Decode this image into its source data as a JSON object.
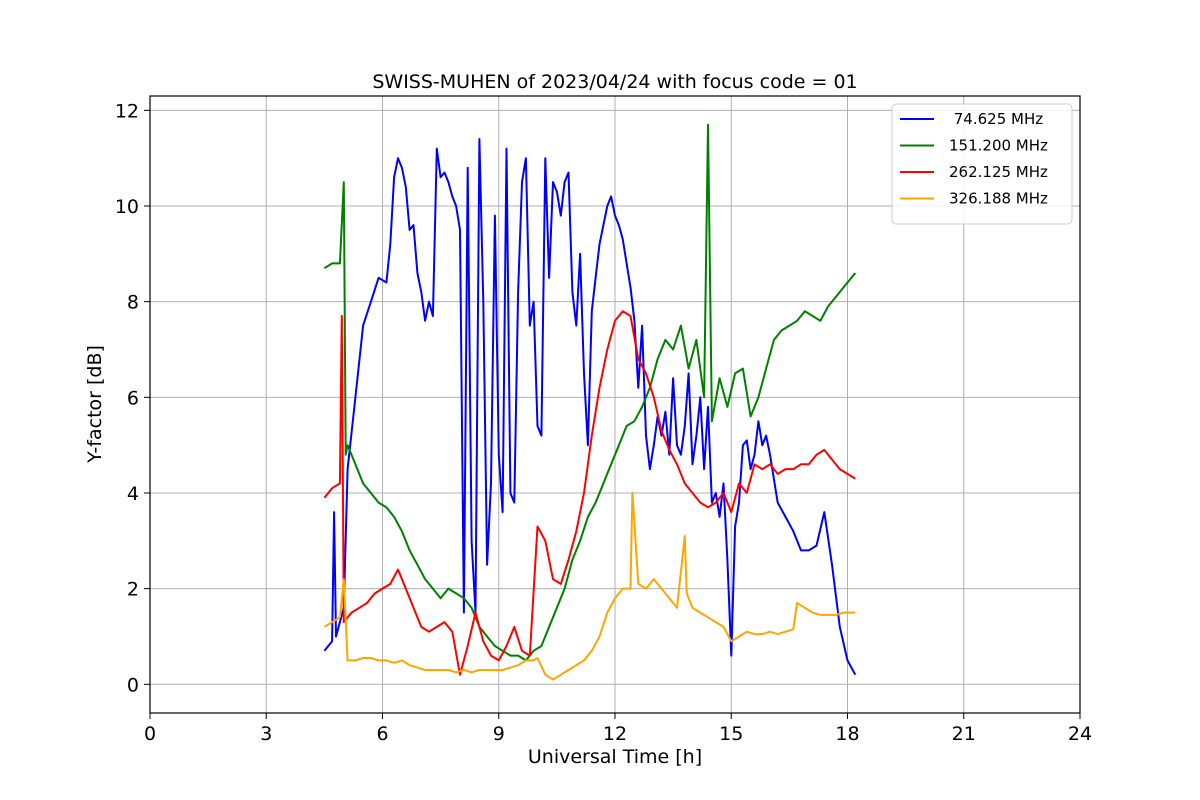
{
  "chart_data": {
    "type": "line",
    "title": "SWISS-MUHEN of 2023/04/24 with focus code = 01",
    "xlabel": "Universal Time [h]",
    "ylabel": "Y-factor [dB]",
    "xlim": [
      0,
      24
    ],
    "ylim": [
      -0.6,
      12.3
    ],
    "xticks": [
      0,
      3,
      6,
      9,
      12,
      15,
      18,
      21,
      24
    ],
    "yticks": [
      0,
      2,
      4,
      6,
      8,
      10,
      12
    ],
    "grid": true,
    "legend_position": "top-right",
    "series": [
      {
        "name": " 74.625 MHz",
        "color": "#0000ff",
        "x": [
          4.5,
          4.7,
          4.75,
          4.8,
          5.0,
          5.1,
          5.3,
          5.5,
          5.7,
          5.9,
          6.1,
          6.2,
          6.3,
          6.4,
          6.5,
          6.6,
          6.7,
          6.8,
          6.9,
          7.0,
          7.1,
          7.2,
          7.3,
          7.4,
          7.5,
          7.6,
          7.7,
          7.8,
          7.9,
          8.0,
          8.1,
          8.2,
          8.3,
          8.4,
          8.5,
          8.6,
          8.7,
          8.8,
          8.9,
          9.0,
          9.1,
          9.2,
          9.3,
          9.4,
          9.5,
          9.6,
          9.7,
          9.8,
          9.9,
          10.0,
          10.1,
          10.2,
          10.3,
          10.4,
          10.5,
          10.6,
          10.7,
          10.8,
          10.9,
          11.0,
          11.1,
          11.2,
          11.3,
          11.4,
          11.5,
          11.6,
          11.7,
          11.8,
          11.9,
          12.0,
          12.1,
          12.2,
          12.3,
          12.4,
          12.5,
          12.6,
          12.7,
          12.8,
          12.9,
          13.0,
          13.1,
          13.2,
          13.3,
          13.4,
          13.5,
          13.6,
          13.7,
          13.8,
          13.9,
          14.0,
          14.1,
          14.2,
          14.3,
          14.4,
          14.5,
          14.6,
          14.7,
          14.8,
          14.9,
          15.0,
          15.1,
          15.2,
          15.3,
          15.4,
          15.5,
          15.6,
          15.7,
          15.8,
          15.9,
          16.0,
          16.2,
          16.4,
          16.6,
          16.8,
          17.0,
          17.2,
          17.4,
          17.6,
          17.8,
          18.0,
          18.2
        ],
        "y": [
          0.7,
          0.9,
          3.6,
          1.0,
          1.6,
          4.5,
          6.0,
          7.5,
          8.0,
          8.5,
          8.4,
          9.2,
          10.6,
          11.0,
          10.8,
          10.4,
          9.5,
          9.6,
          8.6,
          8.2,
          7.6,
          8.0,
          7.7,
          11.2,
          10.6,
          10.7,
          10.5,
          10.2,
          10.0,
          9.5,
          1.5,
          10.8,
          3.0,
          1.5,
          11.4,
          8.0,
          2.5,
          4.2,
          9.8,
          4.8,
          3.6,
          11.2,
          4.0,
          3.8,
          8.2,
          10.5,
          11.0,
          7.5,
          8.0,
          5.4,
          5.2,
          11.0,
          8.5,
          10.5,
          10.3,
          9.8,
          10.5,
          10.7,
          8.2,
          7.5,
          9.0,
          6.5,
          5.0,
          7.8,
          8.5,
          9.2,
          9.6,
          10.0,
          10.2,
          9.8,
          9.6,
          9.3,
          8.8,
          8.3,
          7.6,
          6.2,
          7.5,
          5.2,
          4.5,
          5.0,
          5.6,
          5.2,
          5.7,
          4.8,
          6.4,
          5.0,
          4.8,
          5.4,
          6.5,
          4.6,
          5.2,
          6.0,
          4.5,
          5.8,
          3.8,
          4.0,
          3.5,
          4.2,
          2.6,
          0.6,
          3.3,
          3.8,
          5.0,
          5.1,
          4.5,
          4.8,
          5.5,
          5.0,
          5.2,
          4.8,
          3.8,
          3.5,
          3.2,
          2.8,
          2.8,
          2.9,
          3.6,
          2.5,
          1.2,
          0.5,
          0.2
        ]
      },
      {
        "name": "151.200 MHz",
        "color": "#008000",
        "x": [
          4.5,
          4.7,
          4.9,
          5.0,
          5.05,
          5.1,
          5.3,
          5.5,
          5.7,
          5.9,
          6.1,
          6.3,
          6.5,
          6.7,
          6.9,
          7.1,
          7.3,
          7.5,
          7.7,
          7.9,
          8.1,
          8.3,
          8.5,
          8.7,
          8.9,
          9.1,
          9.3,
          9.5,
          9.7,
          9.9,
          10.1,
          10.3,
          10.5,
          10.7,
          10.9,
          11.1,
          11.3,
          11.5,
          11.7,
          11.9,
          12.1,
          12.3,
          12.5,
          12.7,
          12.9,
          13.1,
          13.3,
          13.5,
          13.7,
          13.9,
          14.1,
          14.3,
          14.4,
          14.5,
          14.7,
          14.9,
          15.1,
          15.3,
          15.5,
          15.7,
          15.9,
          16.1,
          16.3,
          16.5,
          16.7,
          16.9,
          17.1,
          17.3,
          17.5,
          17.7,
          17.9,
          18.1,
          18.2
        ],
        "y": [
          8.7,
          8.8,
          8.8,
          10.5,
          4.8,
          5.0,
          4.6,
          4.2,
          4.0,
          3.8,
          3.7,
          3.5,
          3.2,
          2.8,
          2.5,
          2.2,
          2.0,
          1.8,
          2.0,
          1.9,
          1.8,
          1.6,
          1.2,
          1.0,
          0.8,
          0.7,
          0.6,
          0.6,
          0.5,
          0.7,
          0.8,
          1.2,
          1.6,
          2.0,
          2.6,
          3.0,
          3.5,
          3.8,
          4.2,
          4.6,
          5.0,
          5.4,
          5.5,
          5.8,
          6.2,
          6.8,
          7.2,
          7.0,
          7.5,
          6.6,
          7.2,
          6.0,
          11.7,
          5.5,
          6.4,
          5.8,
          6.5,
          6.6,
          5.6,
          6.0,
          6.6,
          7.2,
          7.4,
          7.5,
          7.6,
          7.8,
          7.7,
          7.6,
          7.9,
          8.1,
          8.3,
          8.5,
          8.6
        ]
      },
      {
        "name": "262.125 MHz",
        "color": "#ff0000",
        "x": [
          4.5,
          4.7,
          4.9,
          4.95,
          5.0,
          5.2,
          5.4,
          5.6,
          5.8,
          6.0,
          6.2,
          6.4,
          6.6,
          6.8,
          7.0,
          7.2,
          7.4,
          7.6,
          7.8,
          8.0,
          8.2,
          8.4,
          8.6,
          8.8,
          9.0,
          9.2,
          9.4,
          9.6,
          9.8,
          10.0,
          10.2,
          10.4,
          10.6,
          10.8,
          11.0,
          11.2,
          11.4,
          11.6,
          11.8,
          12.0,
          12.2,
          12.4,
          12.6,
          12.8,
          13.0,
          13.2,
          13.4,
          13.6,
          13.8,
          14.0,
          14.2,
          14.4,
          14.6,
          14.8,
          15.0,
          15.2,
          15.4,
          15.6,
          15.8,
          16.0,
          16.2,
          16.4,
          16.6,
          16.8,
          17.0,
          17.2,
          17.4,
          17.6,
          17.8,
          18.0,
          18.2
        ],
        "y": [
          3.9,
          4.1,
          4.2,
          7.7,
          1.3,
          1.5,
          1.6,
          1.7,
          1.9,
          2.0,
          2.1,
          2.4,
          2.0,
          1.6,
          1.2,
          1.1,
          1.2,
          1.3,
          1.1,
          0.2,
          0.8,
          1.5,
          0.9,
          0.6,
          0.5,
          0.8,
          1.2,
          0.7,
          0.6,
          3.3,
          3.0,
          2.2,
          2.1,
          2.6,
          3.2,
          4.0,
          5.2,
          6.2,
          7.0,
          7.6,
          7.8,
          7.7,
          6.8,
          6.5,
          6.0,
          5.3,
          4.9,
          4.6,
          4.2,
          4.0,
          3.8,
          3.7,
          3.8,
          4.0,
          3.6,
          4.2,
          4.0,
          4.6,
          4.5,
          4.6,
          4.4,
          4.5,
          4.5,
          4.6,
          4.6,
          4.8,
          4.9,
          4.7,
          4.5,
          4.4,
          4.3
        ]
      },
      {
        "name": "326.188 MHz",
        "color": "#ffa500",
        "x": [
          4.5,
          4.7,
          4.9,
          5.0,
          5.1,
          5.3,
          5.5,
          5.7,
          5.9,
          6.1,
          6.3,
          6.5,
          6.7,
          6.9,
          7.1,
          7.3,
          7.5,
          7.7,
          7.9,
          8.1,
          8.3,
          8.5,
          8.7,
          8.9,
          9.1,
          9.3,
          9.5,
          9.7,
          9.9,
          10.0,
          10.2,
          10.4,
          10.6,
          10.8,
          11.0,
          11.2,
          11.4,
          11.6,
          11.8,
          12.0,
          12.2,
          12.4,
          12.45,
          12.6,
          12.8,
          13.0,
          13.2,
          13.4,
          13.6,
          13.8,
          13.85,
          14.0,
          14.2,
          14.4,
          14.6,
          14.8,
          15.0,
          15.2,
          15.4,
          15.6,
          15.8,
          16.0,
          16.2,
          16.4,
          16.6,
          16.7,
          16.9,
          17.1,
          17.3,
          17.5,
          17.7,
          17.9,
          18.1,
          18.2
        ],
        "y": [
          1.2,
          1.3,
          1.4,
          2.2,
          0.5,
          0.5,
          0.55,
          0.55,
          0.5,
          0.5,
          0.45,
          0.5,
          0.4,
          0.35,
          0.3,
          0.3,
          0.3,
          0.3,
          0.25,
          0.3,
          0.25,
          0.3,
          0.3,
          0.3,
          0.3,
          0.35,
          0.4,
          0.5,
          0.5,
          0.55,
          0.2,
          0.1,
          0.2,
          0.3,
          0.4,
          0.5,
          0.7,
          1.0,
          1.5,
          1.8,
          2.0,
          2.0,
          4.0,
          2.1,
          2.0,
          2.2,
          2.0,
          1.8,
          1.6,
          3.1,
          1.9,
          1.6,
          1.5,
          1.4,
          1.3,
          1.2,
          0.9,
          1.0,
          1.1,
          1.05,
          1.05,
          1.1,
          1.05,
          1.1,
          1.15,
          1.7,
          1.6,
          1.5,
          1.45,
          1.45,
          1.45,
          1.5,
          1.5,
          1.5
        ]
      }
    ]
  }
}
